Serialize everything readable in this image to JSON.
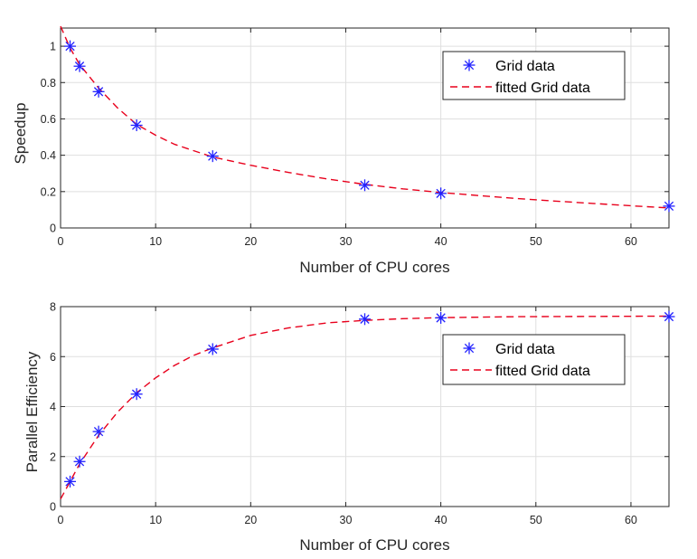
{
  "colors": {
    "marker": "#2222ff",
    "fit": "#e8001c",
    "axis": "#262626",
    "grid": "#dfdfdf"
  },
  "chart_data": [
    {
      "type": "scatter",
      "xlabel": "Number of CPU cores",
      "ylabel": "Speedup",
      "xlim": [
        0,
        64
      ],
      "ylim": [
        0,
        1.1
      ],
      "xticks": [
        0,
        10,
        20,
        30,
        40,
        50,
        60
      ],
      "yticks": [
        0,
        0.2,
        0.4,
        0.6,
        0.8,
        1
      ],
      "ytick_labels": [
        "0",
        "0.2",
        "0.4",
        "0.6",
        "0.8",
        "1"
      ],
      "grid": true,
      "legend_position": "top-right",
      "series": [
        {
          "name": "Grid data",
          "style": "star-marker",
          "x": [
            1,
            2,
            4,
            8,
            16,
            32,
            40,
            64
          ],
          "y": [
            1.0,
            0.89,
            0.75,
            0.565,
            0.395,
            0.235,
            0.19,
            0.12
          ]
        },
        {
          "name": "fitted Grid data",
          "style": "dashed-line",
          "x": [
            0,
            1,
            2,
            4,
            6,
            8,
            10,
            12,
            16,
            20,
            24,
            28,
            32,
            36,
            40,
            44,
            48,
            52,
            56,
            60,
            64
          ],
          "y": [
            1.11,
            0.99,
            0.9,
            0.77,
            0.66,
            0.57,
            0.51,
            0.46,
            0.39,
            0.345,
            0.305,
            0.27,
            0.24,
            0.215,
            0.195,
            0.178,
            0.162,
            0.148,
            0.135,
            0.122,
            0.11
          ]
        }
      ]
    },
    {
      "type": "scatter",
      "xlabel": "Number of CPU cores",
      "ylabel": "Parallel Efficiency",
      "xlim": [
        0,
        64
      ],
      "ylim": [
        0,
        8
      ],
      "xticks": [
        0,
        10,
        20,
        30,
        40,
        50,
        60
      ],
      "yticks": [
        0,
        2,
        4,
        6,
        8
      ],
      "ytick_labels": [
        "0",
        "2",
        "4",
        "6",
        "8"
      ],
      "grid": true,
      "legend_position": "right",
      "series": [
        {
          "name": "Grid data",
          "style": "star-marker",
          "x": [
            1,
            2,
            4,
            8,
            16,
            32,
            40,
            64
          ],
          "y": [
            1.0,
            1.8,
            3.0,
            4.5,
            6.3,
            7.5,
            7.55,
            7.6
          ]
        },
        {
          "name": "fitted Grid data",
          "style": "dashed-line",
          "x": [
            0,
            1,
            2,
            4,
            6,
            8,
            10,
            12,
            14,
            16,
            20,
            24,
            28,
            32,
            36,
            40,
            48,
            56,
            64
          ],
          "y": [
            0.3,
            1.0,
            1.7,
            2.85,
            3.78,
            4.55,
            5.15,
            5.65,
            6.05,
            6.35,
            6.85,
            7.15,
            7.35,
            7.45,
            7.52,
            7.56,
            7.6,
            7.61,
            7.62
          ]
        }
      ]
    }
  ]
}
